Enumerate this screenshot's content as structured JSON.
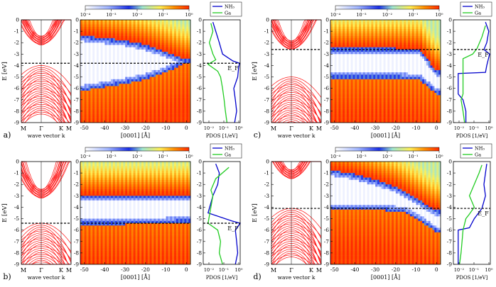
{
  "figure": {
    "colormap_stops": [
      "#ffffff",
      "#1a2fe6",
      "#ffef55",
      "#ff2a00"
    ],
    "band_color": "#ff1010",
    "fermi_line_color": "#000000",
    "pdos_colors": {
      "nh3": "#0000cc",
      "ga": "#22cc22"
    }
  },
  "chart_data": [
    {
      "panel": "a)",
      "type": "band-structure + heatmap + pdos",
      "fermi_level_eV": -3.8,
      "band_structure": {
        "ylabel": "E [eV]",
        "xlabel": "wave vector k",
        "x_ticks": [
          "M",
          "Γ",
          "K",
          "M"
        ],
        "ylim": [
          -9,
          0
        ],
        "y_ticks": [
          "0",
          "-1",
          "-2",
          "-3",
          "-4",
          "-5",
          "-6",
          "-7",
          "-8",
          "-9"
        ],
        "gap": [
          -4.0,
          -2.2
        ]
      },
      "heatmap": {
        "xlabel": "[0001] [Å]",
        "x_ticks": [
          "-50",
          "-40",
          "-30",
          "-20",
          "-10",
          "0"
        ],
        "xlim": [
          -52,
          2
        ],
        "colorbar": {
          "ticks": [
            "10⁻⁴",
            "10⁻³",
            "10⁻²",
            "10⁻¹",
            "10⁰"
          ],
          "scale": "log",
          "range": [
            0.0001,
            1
          ]
        },
        "cb_edge": [
          [
            -50,
            -1.4
          ],
          [
            -40,
            -1.6
          ],
          [
            -30,
            -1.8
          ],
          [
            -20,
            -2.2
          ],
          [
            -10,
            -2.8
          ],
          [
            -3,
            -3.3
          ],
          [
            0,
            -3.5
          ]
        ],
        "vb_edge": [
          [
            -50,
            -6.2
          ],
          [
            -40,
            -5.9
          ],
          [
            -30,
            -5.6
          ],
          [
            -20,
            -5.2
          ],
          [
            -10,
            -4.6
          ],
          [
            -3,
            -4.0
          ],
          [
            0,
            -3.7
          ]
        ]
      },
      "pdos": {
        "xlabel": "PDOS [1/eV]",
        "x_ticks": [
          "10⁻²",
          "10⁻¹",
          "10⁰"
        ],
        "legend": [
          "NH₃",
          "Ga"
        ],
        "ef_label": "E_F",
        "nh3": [
          [
            -0.2,
            0.02
          ],
          [
            -1.0,
            0.03
          ],
          [
            -2.0,
            0.05
          ],
          [
            -3.0,
            0.08
          ],
          [
            -3.6,
            0.35
          ],
          [
            -3.8,
            0.9
          ],
          [
            -4.2,
            0.8
          ],
          [
            -5.0,
            0.7
          ],
          [
            -6.0,
            0.4
          ],
          [
            -7.0,
            0.5
          ],
          [
            -8.0,
            0.6
          ],
          [
            -9.0,
            0.45
          ]
        ],
        "ga": [
          [
            -0.3,
            0.015
          ],
          [
            -1.0,
            0.02
          ],
          [
            -2.0,
            0.012
          ],
          [
            -3.0,
            0.02
          ],
          [
            -3.5,
            0.03
          ],
          [
            -3.9,
            0.01
          ],
          [
            -4.5,
            0.04
          ],
          [
            -5.0,
            0.06
          ],
          [
            -6.0,
            0.08
          ],
          [
            -7.0,
            0.1
          ],
          [
            -8.0,
            0.12
          ],
          [
            -9.0,
            0.15
          ]
        ]
      }
    },
    {
      "panel": "b)",
      "type": "band-structure + heatmap + pdos",
      "fermi_level_eV": -5.4,
      "band_structure": {
        "ylabel": "E [eV]",
        "xlabel": "wave vector k",
        "x_ticks": [
          "M",
          "Γ",
          "K",
          "M"
        ],
        "ylim": [
          -9,
          0
        ],
        "y_ticks": [
          "0",
          "-1",
          "-2",
          "-3",
          "-4",
          "-5",
          "-6",
          "-7",
          "-8",
          "-9"
        ],
        "gap": [
          -5.4,
          -3.2
        ]
      },
      "heatmap": {
        "xlabel": "[0001] [Å]",
        "x_ticks": [
          "-50",
          "-40",
          "-30",
          "-20",
          "-10",
          "0"
        ],
        "xlim": [
          -52,
          2
        ],
        "colorbar": {
          "ticks": [
            "10⁻⁴",
            "10⁻³",
            "10⁻²",
            "10⁻¹",
            "10⁰"
          ],
          "scale": "log",
          "range": [
            0.0001,
            1
          ]
        },
        "cb_edge": [
          [
            -50,
            -3.0
          ],
          [
            -30,
            -3.0
          ],
          [
            -10,
            -3.0
          ],
          [
            0,
            -3.0
          ]
        ],
        "vb_edge": [
          [
            -50,
            -5.5
          ],
          [
            -30,
            -5.5
          ],
          [
            -10,
            -5.4
          ],
          [
            0,
            -5.3
          ]
        ]
      },
      "pdos": {
        "xlabel": "PDOS [1/eV]",
        "x_ticks": [
          "10⁻²",
          "10⁻¹",
          "10⁰"
        ],
        "legend": [
          "NH₃",
          "Ga"
        ],
        "ef_label": "E_F",
        "nh3": [
          [
            -0.2,
            0.03
          ],
          [
            -1.0,
            0.05
          ],
          [
            -2.0,
            0.04
          ],
          [
            -3.0,
            0.02
          ],
          [
            -4.5,
            0.01
          ],
          [
            -5.2,
            0.3
          ],
          [
            -5.4,
            1.0
          ],
          [
            -6.0,
            0.5
          ],
          [
            -7.0,
            0.6
          ],
          [
            -8.0,
            0.7
          ],
          [
            -9.0,
            0.5
          ]
        ],
        "ga": [
          [
            -0.5,
            0.2
          ],
          [
            -1.5,
            0.03
          ],
          [
            -2.5,
            0.015
          ],
          [
            -3.0,
            0.02
          ],
          [
            -5.4,
            0.01
          ],
          [
            -6.0,
            0.04
          ],
          [
            -7.0,
            0.06
          ],
          [
            -8.0,
            0.05
          ],
          [
            -9.0,
            0.08
          ]
        ]
      }
    },
    {
      "panel": "c)",
      "type": "band-structure + heatmap + pdos",
      "fermi_level_eV": -2.6,
      "band_structure": {
        "ylabel": "E [eV]",
        "xlabel": "wave vector k",
        "x_ticks": [
          "M",
          "Γ",
          "K",
          "M"
        ],
        "ylim": [
          -9,
          0
        ],
        "y_ticks": [
          "0",
          "-1",
          "-2",
          "-3",
          "-4",
          "-5",
          "-6",
          "-7",
          "-8",
          "-9"
        ],
        "gap": [
          -5.0,
          -2.6
        ]
      },
      "heatmap": {
        "xlabel": "[0001] [Å]",
        "x_ticks": [
          "-50",
          "-40",
          "-30",
          "-20",
          "-10",
          "0"
        ],
        "xlim": [
          -52,
          2
        ],
        "colorbar": {
          "ticks": [
            "10⁻⁴",
            "10⁻³",
            "10⁻²",
            "10⁻¹",
            "10⁰"
          ],
          "scale": "log",
          "range": [
            0.0001,
            1
          ]
        },
        "cb_edge": [
          [
            -50,
            -2.5
          ],
          [
            -20,
            -2.5
          ],
          [
            -8,
            -2.6
          ],
          [
            0,
            -4.5
          ]
        ],
        "vb_edge": [
          [
            -50,
            -5.1
          ],
          [
            -20,
            -5.1
          ],
          [
            -8,
            -5.3
          ],
          [
            0,
            -6.5
          ]
        ]
      },
      "pdos": {
        "xlabel": "PDOS [1/eV]",
        "x_ticks": [
          "10⁻²",
          "10⁻¹",
          "10⁰"
        ],
        "legend": [
          "NH₃",
          "Ga"
        ],
        "ef_label": "E_F",
        "nh3": [
          [
            -0.2,
            0.5
          ],
          [
            -1.0,
            0.8
          ],
          [
            -2.0,
            0.6
          ],
          [
            -2.6,
            0.4
          ],
          [
            -3.0,
            0.9
          ],
          [
            -4.0,
            0.6
          ],
          [
            -4.6,
            0.5
          ],
          [
            -4.7,
            0.01
          ],
          [
            -6.5,
            0.01
          ],
          [
            -7.0,
            0.02
          ],
          [
            -8.0,
            0.03
          ],
          [
            -9.0,
            0.03
          ]
        ],
        "ga": [
          [
            -0.5,
            0.5
          ],
          [
            -1.5,
            0.3
          ],
          [
            -2.5,
            0.15
          ],
          [
            -3.0,
            0.08
          ],
          [
            -3.4,
            0.02
          ],
          [
            -6.5,
            0.02
          ],
          [
            -7.0,
            0.015
          ],
          [
            -8.0,
            0.02
          ],
          [
            -9.0,
            0.025
          ]
        ]
      }
    },
    {
      "panel": "d)",
      "type": "band-structure + heatmap + pdos",
      "fermi_level_eV": -4.1,
      "band_structure": {
        "ylabel": "E [eV]",
        "xlabel": "wave vector k",
        "x_ticks": [
          "M",
          "Γ",
          "K",
          "M"
        ],
        "ylim": [
          -9,
          0
        ],
        "y_ticks": [
          "0",
          "-1",
          "-2",
          "-3",
          "-4",
          "-5",
          "-6",
          "-7",
          "-8",
          "-9"
        ],
        "gap": [
          -4.1,
          -1.5
        ]
      },
      "heatmap": {
        "xlabel": "[0001] [Å]",
        "x_ticks": [
          "-50",
          "-40",
          "-30",
          "-20",
          "-10",
          "0"
        ],
        "xlim": [
          -52,
          2
        ],
        "colorbar": {
          "ticks": [
            "10⁻⁴",
            "10⁻³",
            "10⁻²",
            "10⁻¹",
            "10⁰"
          ],
          "scale": "log",
          "range": [
            0.0001,
            1
          ]
        },
        "cb_edge": [
          [
            -50,
            -0.8
          ],
          [
            -40,
            -1.1
          ],
          [
            -30,
            -1.6
          ],
          [
            -20,
            -2.2
          ],
          [
            -10,
            -3.2
          ],
          [
            -3,
            -4.0
          ],
          [
            0,
            -4.3
          ]
        ],
        "vb_edge": [
          [
            -50,
            -4.2
          ],
          [
            -30,
            -4.2
          ],
          [
            -15,
            -4.5
          ],
          [
            -8,
            -5.2
          ],
          [
            -3,
            -5.8
          ],
          [
            0,
            -6.2
          ]
        ]
      },
      "pdos": {
        "xlabel": "PDOS [1/eV]",
        "x_ticks": [
          "10⁻²",
          "10⁻¹",
          "10⁰"
        ],
        "legend": [
          "NH₃",
          "Ga"
        ],
        "ef_label": "E_F",
        "nh3": [
          [
            -0.2,
            0.6
          ],
          [
            -1.0,
            0.5
          ],
          [
            -2.0,
            0.4
          ],
          [
            -3.0,
            0.5
          ],
          [
            -4.1,
            0.3
          ],
          [
            -5.0,
            0.1
          ],
          [
            -5.8,
            0.05
          ],
          [
            -6.0,
            0.01
          ],
          [
            -7.0,
            0.01
          ],
          [
            -8.0,
            0.01
          ],
          [
            -9.0,
            0.01
          ]
        ],
        "ga": [
          [
            -0.3,
            0.3
          ],
          [
            -1.0,
            0.2
          ],
          [
            -2.0,
            0.1
          ],
          [
            -3.0,
            0.05
          ],
          [
            -4.0,
            0.1
          ],
          [
            -4.6,
            0.05
          ],
          [
            -5.0,
            0.03
          ],
          [
            -6.0,
            0.02
          ],
          [
            -8.0,
            0.015
          ],
          [
            -9.0,
            0.012
          ]
        ]
      }
    }
  ]
}
